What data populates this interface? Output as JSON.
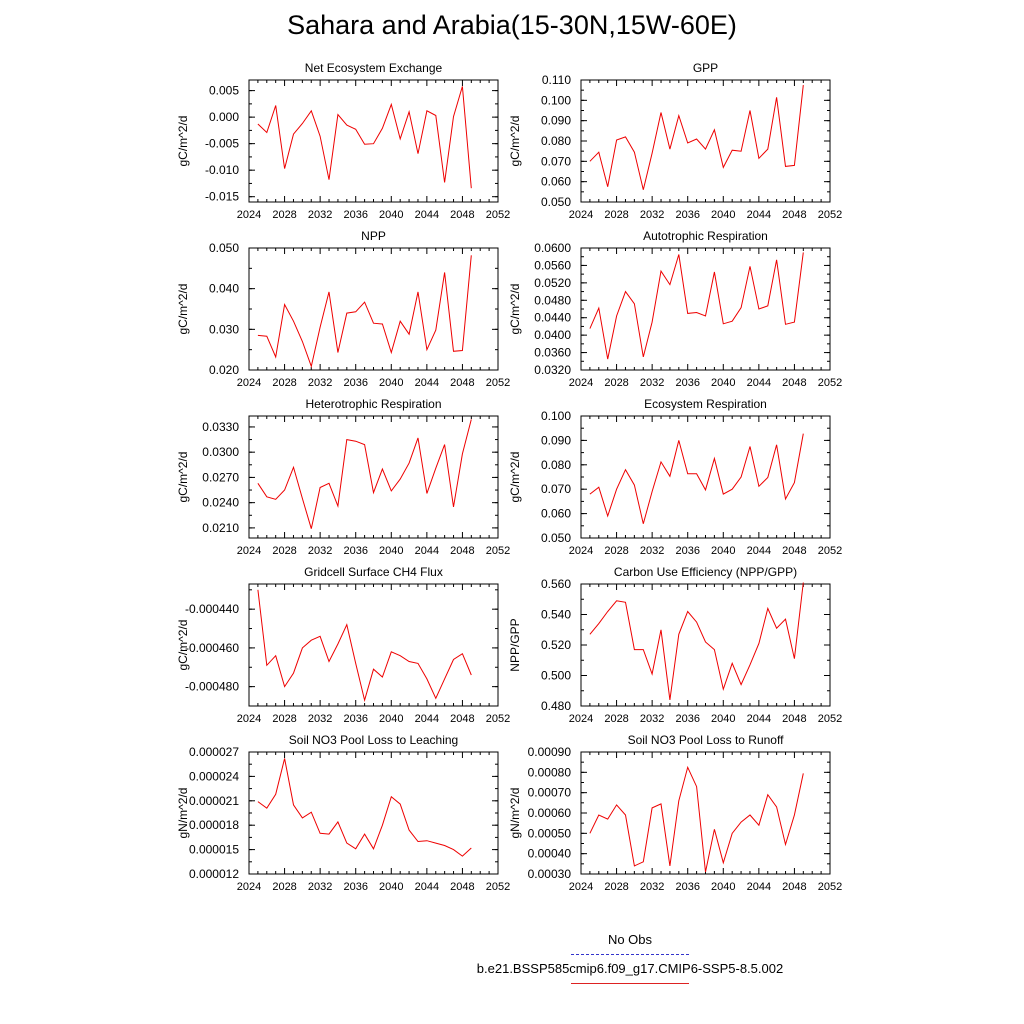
{
  "title": "Sahara and Arabia(15-30N,15W-60E)",
  "legend": {
    "obs_label": "No Obs",
    "model_label": "b.e21.BSSP585cmip6.f09_g17.CMIP6-SSP5-8.5.002"
  },
  "colors": {
    "model_line": "#ee0000",
    "obs_line": "#3333cc"
  },
  "chart_data": [
    {
      "type": "line",
      "title": "Net Ecosystem Exchange",
      "ylabel": "gC/m^2/d",
      "xlim": [
        2024,
        2052
      ],
      "xticks": [
        "2024",
        "2028",
        "2032",
        "2036",
        "2040",
        "2044",
        "2048",
        "2052"
      ],
      "ylim": [
        -0.016,
        0.007
      ],
      "yticks": [
        -0.015,
        -0.01,
        -0.005,
        0.0,
        0.005
      ],
      "ytick_labels": [
        "-0.015",
        "-0.010",
        "-0.005",
        "0.000",
        "0.005"
      ],
      "x": [
        2025,
        2026,
        2027,
        2028,
        2029,
        2030,
        2031,
        2032,
        2033,
        2034,
        2035,
        2036,
        2037,
        2038,
        2039,
        2040,
        2041,
        2042,
        2043,
        2044,
        2045,
        2046,
        2047,
        2048,
        2049
      ],
      "series": [
        {
          "values": [
            -0.0013,
            -0.0029,
            0.0022,
            -0.0097,
            -0.0032,
            -0.0012,
            0.0012,
            -0.0036,
            -0.0118,
            0.0005,
            -0.0015,
            -0.0023,
            -0.0051,
            -0.005,
            -0.0021,
            0.0024,
            -0.0041,
            0.001,
            -0.0069,
            0.0012,
            0.0003,
            -0.0123,
            0.0001,
            0.0058,
            -0.0134
          ]
        }
      ]
    },
    {
      "type": "line",
      "title": "GPP",
      "ylabel": "gC/m^2/d",
      "xlim": [
        2024,
        2052
      ],
      "xticks": [
        "2024",
        "2028",
        "2032",
        "2036",
        "2040",
        "2044",
        "2048",
        "2052"
      ],
      "ylim": [
        0.05,
        0.11
      ],
      "yticks": [
        0.05,
        0.06,
        0.07,
        0.08,
        0.09,
        0.1,
        0.11
      ],
      "ytick_labels": [
        "0.050",
        "0.060",
        "0.070",
        "0.080",
        "0.090",
        "0.100",
        "0.110"
      ],
      "x": [
        2025,
        2026,
        2027,
        2028,
        2029,
        2030,
        2031,
        2032,
        2033,
        2034,
        2035,
        2036,
        2037,
        2038,
        2039,
        2040,
        2041,
        2042,
        2043,
        2044,
        2045,
        2046,
        2047,
        2048,
        2049
      ],
      "series": [
        {
          "values": [
            0.07,
            0.0745,
            0.0575,
            0.0805,
            0.082,
            0.0745,
            0.056,
            0.074,
            0.094,
            0.076,
            0.0925,
            0.079,
            0.081,
            0.076,
            0.0855,
            0.067,
            0.0755,
            0.075,
            0.095,
            0.0715,
            0.076,
            0.1015,
            0.0675,
            0.068,
            0.1075
          ]
        }
      ]
    },
    {
      "type": "line",
      "title": "NPP",
      "ylabel": "gC/m^2/d",
      "xlim": [
        2024,
        2052
      ],
      "xticks": [
        "2024",
        "2028",
        "2032",
        "2036",
        "2040",
        "2044",
        "2048",
        "2052"
      ],
      "ylim": [
        0.02,
        0.05
      ],
      "yticks": [
        0.02,
        0.03,
        0.04,
        0.05
      ],
      "ytick_labels": [
        "0.020",
        "0.030",
        "0.040",
        "0.050"
      ],
      "x": [
        2025,
        2026,
        2027,
        2028,
        2029,
        2030,
        2031,
        2032,
        2033,
        2034,
        2035,
        2036,
        2037,
        2038,
        2039,
        2040,
        2041,
        2042,
        2043,
        2044,
        2045,
        2046,
        2047,
        2048,
        2049
      ],
      "series": [
        {
          "values": [
            0.0285,
            0.0283,
            0.0232,
            0.0361,
            0.032,
            0.027,
            0.0209,
            0.0305,
            0.0392,
            0.0243,
            0.034,
            0.0343,
            0.0367,
            0.0315,
            0.0313,
            0.0243,
            0.032,
            0.0288,
            0.0392,
            0.025,
            0.0298,
            0.044,
            0.0246,
            0.0248,
            0.0482
          ]
        }
      ]
    },
    {
      "type": "line",
      "title": "Autotrophic Respiration",
      "ylabel": "gC/m^2/d",
      "xlim": [
        2024,
        2052
      ],
      "xticks": [
        "2024",
        "2028",
        "2032",
        "2036",
        "2040",
        "2044",
        "2048",
        "2052"
      ],
      "ylim": [
        0.032,
        0.06
      ],
      "yticks": [
        0.032,
        0.036,
        0.04,
        0.044,
        0.048,
        0.052,
        0.056,
        0.06
      ],
      "ytick_labels": [
        "0.0320",
        "0.0360",
        "0.0400",
        "0.0440",
        "0.0480",
        "0.0520",
        "0.0560",
        "0.0600"
      ],
      "x": [
        2025,
        2026,
        2027,
        2028,
        2029,
        2030,
        2031,
        2032,
        2033,
        2034,
        2035,
        2036,
        2037,
        2038,
        2039,
        2040,
        2041,
        2042,
        2043,
        2044,
        2045,
        2046,
        2047,
        2048,
        2049
      ],
      "series": [
        {
          "values": [
            0.0415,
            0.0462,
            0.0345,
            0.0444,
            0.05,
            0.0472,
            0.035,
            0.043,
            0.0547,
            0.0516,
            0.0585,
            0.045,
            0.0452,
            0.0444,
            0.0545,
            0.0426,
            0.0432,
            0.0463,
            0.0558,
            0.046,
            0.0467,
            0.0573,
            0.0425,
            0.043,
            0.059
          ]
        }
      ]
    },
    {
      "type": "line",
      "title": "Heterotrophic Respiration",
      "ylabel": "gC/m^2/d",
      "xlim": [
        2024,
        2052
      ],
      "xticks": [
        "2024",
        "2028",
        "2032",
        "2036",
        "2040",
        "2044",
        "2048",
        "2052"
      ],
      "ylim": [
        0.0198,
        0.0343
      ],
      "yticks": [
        0.021,
        0.024,
        0.027,
        0.03,
        0.033
      ],
      "ytick_labels": [
        "0.0210",
        "0.0240",
        "0.0270",
        "0.0300",
        "0.0330"
      ],
      "x": [
        2025,
        2026,
        2027,
        2028,
        2029,
        2030,
        2031,
        2032,
        2033,
        2034,
        2035,
        2036,
        2037,
        2038,
        2039,
        2040,
        2041,
        2042,
        2043,
        2044,
        2045,
        2046,
        2047,
        2048,
        2049
      ],
      "series": [
        {
          "values": [
            0.0263,
            0.0247,
            0.0244,
            0.0255,
            0.0282,
            0.0245,
            0.0209,
            0.0258,
            0.0263,
            0.0236,
            0.0315,
            0.0313,
            0.0309,
            0.0252,
            0.028,
            0.0254,
            0.0268,
            0.0287,
            0.0317,
            0.0251,
            0.0281,
            0.0309,
            0.0235,
            0.0298,
            0.0339
          ]
        }
      ]
    },
    {
      "type": "line",
      "title": "Ecosystem Respiration",
      "ylabel": "gC/m^2/d",
      "xlim": [
        2024,
        2052
      ],
      "xticks": [
        "2024",
        "2028",
        "2032",
        "2036",
        "2040",
        "2044",
        "2048",
        "2052"
      ],
      "ylim": [
        0.05,
        0.1
      ],
      "yticks": [
        0.05,
        0.06,
        0.07,
        0.08,
        0.09,
        0.1
      ],
      "ytick_labels": [
        "0.050",
        "0.060",
        "0.070",
        "0.080",
        "0.090",
        "0.100"
      ],
      "x": [
        2025,
        2026,
        2027,
        2028,
        2029,
        2030,
        2031,
        2032,
        2033,
        2034,
        2035,
        2036,
        2037,
        2038,
        2039,
        2040,
        2041,
        2042,
        2043,
        2044,
        2045,
        2046,
        2047,
        2048,
        2049
      ],
      "series": [
        {
          "values": [
            0.068,
            0.0708,
            0.059,
            0.07,
            0.078,
            0.0717,
            0.0558,
            0.069,
            0.0812,
            0.0753,
            0.09,
            0.0763,
            0.0763,
            0.0697,
            0.0826,
            0.068,
            0.07,
            0.075,
            0.0875,
            0.0712,
            0.0748,
            0.0882,
            0.066,
            0.0727,
            0.0928
          ]
        }
      ]
    },
    {
      "type": "line",
      "title": "Gridcell Surface CH4 Flux",
      "ylabel": "gC/m^2/d",
      "xlim": [
        2024,
        2052
      ],
      "xticks": [
        "2024",
        "2028",
        "2032",
        "2036",
        "2040",
        "2044",
        "2048",
        "2052"
      ],
      "ylim": [
        -0.00049,
        -0.000427
      ],
      "yticks": [
        -0.00048,
        -0.00046,
        -0.00044
      ],
      "ytick_labels": [
        "-0.000480",
        "-0.000460",
        "-0.000440"
      ],
      "x": [
        2025,
        2026,
        2027,
        2028,
        2029,
        2030,
        2031,
        2032,
        2033,
        2034,
        2035,
        2036,
        2037,
        2038,
        2039,
        2040,
        2041,
        2042,
        2043,
        2044,
        2045,
        2046,
        2047,
        2048,
        2049
      ],
      "series": [
        {
          "values": [
            -0.00043,
            -0.000469,
            -0.000464,
            -0.00048,
            -0.000473,
            -0.00046,
            -0.000456,
            -0.000454,
            -0.000467,
            -0.000458,
            -0.000448,
            -0.000468,
            -0.000487,
            -0.000471,
            -0.000475,
            -0.000462,
            -0.000464,
            -0.000467,
            -0.000468,
            -0.000476,
            -0.000486,
            -0.000476,
            -0.000466,
            -0.000463,
            -0.000474
          ]
        }
      ]
    },
    {
      "type": "line",
      "title": "Carbon Use Efficiency (NPP/GPP)",
      "ylabel": "NPP/GPP",
      "xlim": [
        2024,
        2052
      ],
      "xticks": [
        "2024",
        "2028",
        "2032",
        "2036",
        "2040",
        "2044",
        "2048",
        "2052"
      ],
      "ylim": [
        0.48,
        0.56
      ],
      "yticks": [
        0.48,
        0.5,
        0.52,
        0.54,
        0.56
      ],
      "ytick_labels": [
        "0.480",
        "0.500",
        "0.520",
        "0.540",
        "0.560"
      ],
      "x": [
        2025,
        2026,
        2027,
        2028,
        2029,
        2030,
        2031,
        2032,
        2033,
        2034,
        2035,
        2036,
        2037,
        2038,
        2039,
        2040,
        2041,
        2042,
        2043,
        2044,
        2045,
        2046,
        2047,
        2048,
        2049
      ],
      "series": [
        {
          "values": [
            0.527,
            0.534,
            0.542,
            0.549,
            0.548,
            0.517,
            0.517,
            0.501,
            0.53,
            0.484,
            0.527,
            0.542,
            0.535,
            0.522,
            0.517,
            0.491,
            0.508,
            0.494,
            0.507,
            0.521,
            0.544,
            0.531,
            0.537,
            0.511,
            0.561
          ]
        }
      ]
    },
    {
      "type": "line",
      "title": "Soil NO3 Pool Loss to Leaching",
      "ylabel": "gN/m^2/d",
      "xlim": [
        2024,
        2052
      ],
      "xticks": [
        "2024",
        "2028",
        "2032",
        "2036",
        "2040",
        "2044",
        "2048",
        "2052"
      ],
      "ylim": [
        1.2e-05,
        2.7e-05
      ],
      "yticks": [
        1.2e-05,
        1.5e-05,
        1.8e-05,
        2.1e-05,
        2.4e-05,
        2.7e-05
      ],
      "ytick_labels": [
        "0.000012",
        "0.000015",
        "0.000018",
        "0.000021",
        "0.000024",
        "0.000027"
      ],
      "x": [
        2025,
        2026,
        2027,
        2028,
        2029,
        2030,
        2031,
        2032,
        2033,
        2034,
        2035,
        2036,
        2037,
        2038,
        2039,
        2040,
        2041,
        2042,
        2043,
        2044,
        2045,
        2046,
        2047,
        2048,
        2049
      ],
      "series": [
        {
          "values": [
            2.09e-05,
            2.01e-05,
            2.18e-05,
            2.62e-05,
            2.05e-05,
            1.89e-05,
            1.96e-05,
            1.7e-05,
            1.69e-05,
            1.84e-05,
            1.58e-05,
            1.51e-05,
            1.69e-05,
            1.51e-05,
            1.8e-05,
            2.15e-05,
            2.06e-05,
            1.74e-05,
            1.6e-05,
            1.61e-05,
            1.58e-05,
            1.55e-05,
            1.5e-05,
            1.42e-05,
            1.52e-05
          ]
        }
      ]
    },
    {
      "type": "line",
      "title": "Soil NO3 Pool Loss to Runoff",
      "ylabel": "gN/m^2/d",
      "xlim": [
        2024,
        2052
      ],
      "xticks": [
        "2024",
        "2028",
        "2032",
        "2036",
        "2040",
        "2044",
        "2048",
        "2052"
      ],
      "ylim": [
        0.0003,
        0.0009
      ],
      "yticks": [
        0.0003,
        0.0004,
        0.0005,
        0.0006,
        0.0007,
        0.0008,
        0.0009
      ],
      "ytick_labels": [
        "0.00030",
        "0.00040",
        "0.00050",
        "0.00060",
        "0.00070",
        "0.00080",
        "0.00090"
      ],
      "x": [
        2025,
        2026,
        2027,
        2028,
        2029,
        2030,
        2031,
        2032,
        2033,
        2034,
        2035,
        2036,
        2037,
        2038,
        2039,
        2040,
        2041,
        2042,
        2043,
        2044,
        2045,
        2046,
        2047,
        2048,
        2049
      ],
      "series": [
        {
          "values": [
            0.0005,
            0.00059,
            0.00057,
            0.00064,
            0.00059,
            0.00034,
            0.00036,
            0.000625,
            0.000645,
            0.00034,
            0.00066,
            0.000825,
            0.00073,
            0.00031,
            0.00052,
            0.000355,
            0.0005,
            0.000555,
            0.00059,
            0.00054,
            0.00069,
            0.00063,
            0.000445,
            0.00059,
            0.000795
          ]
        }
      ]
    }
  ]
}
